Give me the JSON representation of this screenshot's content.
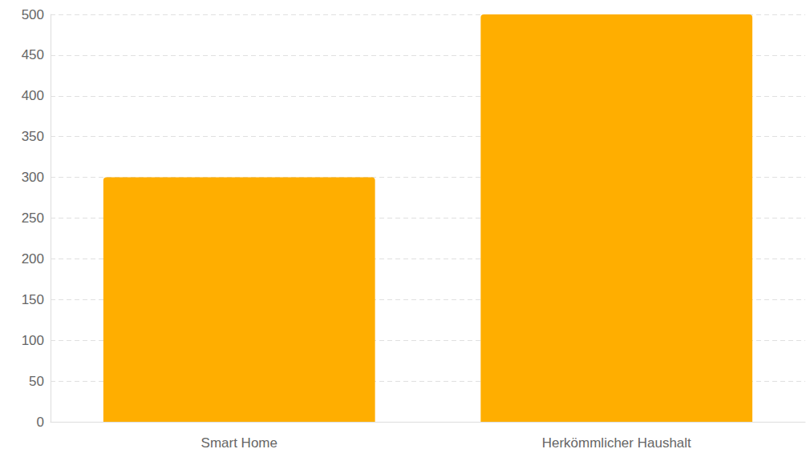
{
  "chart_data": {
    "type": "bar",
    "categories": [
      "Smart Home",
      "Herkömmlicher Haushalt"
    ],
    "values": [
      300,
      500
    ],
    "color": "#ffae00",
    "ylim": [
      0,
      500
    ],
    "yticks": [
      0,
      50,
      100,
      150,
      200,
      250,
      300,
      350,
      400,
      450,
      500
    ],
    "grid": true
  }
}
